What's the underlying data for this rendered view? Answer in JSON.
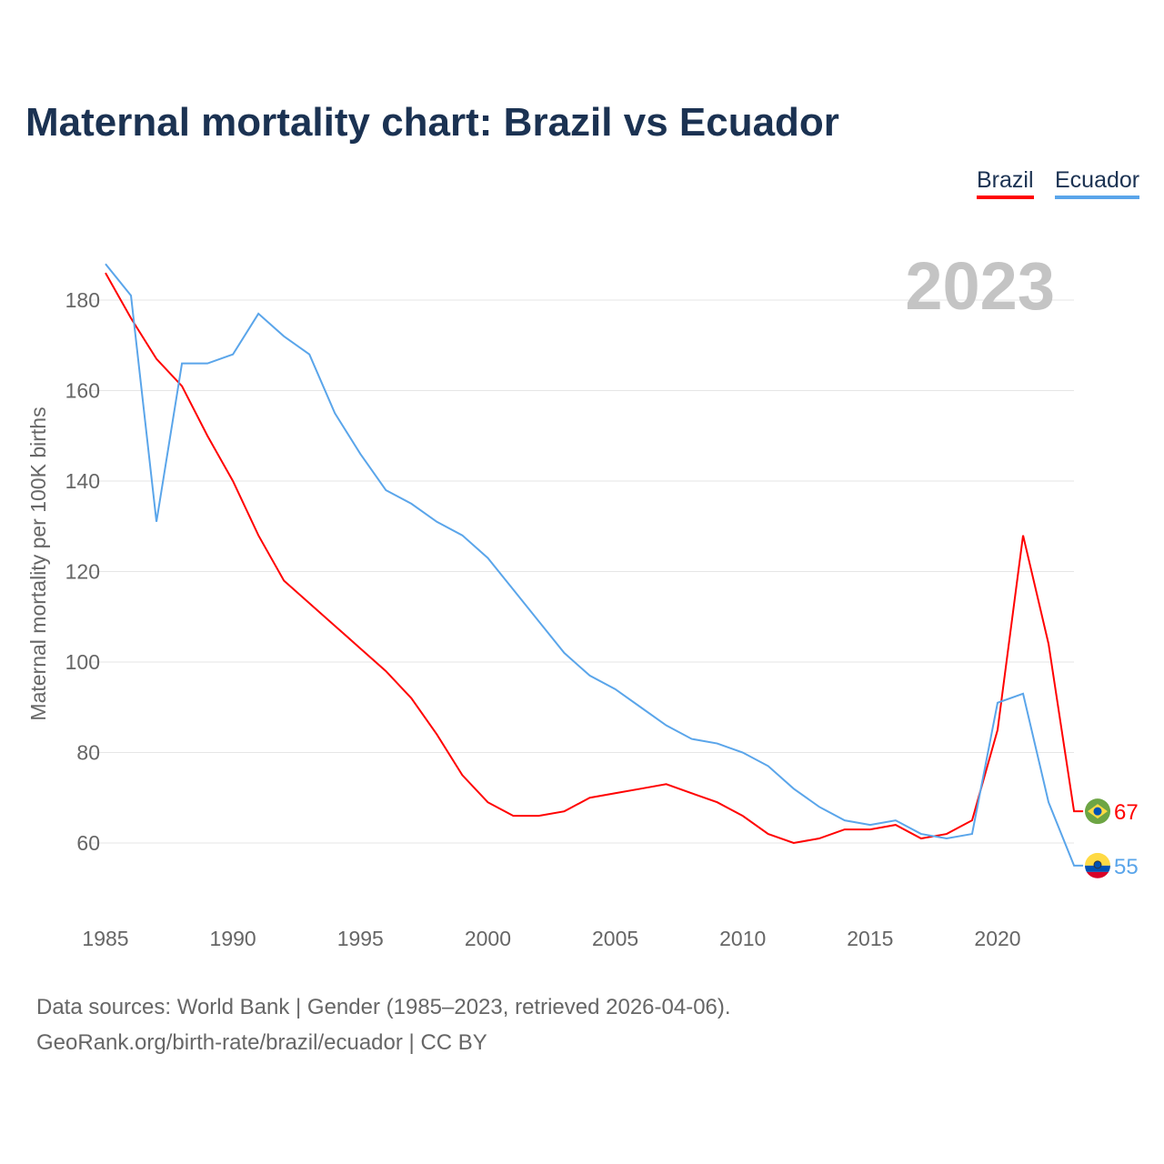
{
  "title": "Maternal mortality chart: Brazil vs Ecuador",
  "footer": {
    "line1": "Data sources: World Bank | Gender (1985–2023, retrieved 2026-04-06).",
    "line2": "GeoRank.org/birth-rate/brazil/ecuador | CC BY"
  },
  "chart_data": {
    "type": "line",
    "title": "Maternal mortality chart: Brazil vs Ecuador",
    "year_label": "2023",
    "xlabel": "",
    "ylabel": "Maternal mortality per 100K births",
    "xlim": [
      1985,
      2023
    ],
    "ylim": [
      50,
      190
    ],
    "xticks": [
      1985,
      1990,
      1995,
      2000,
      2005,
      2010,
      2015,
      2020
    ],
    "yticks": [
      60,
      80,
      100,
      120,
      140,
      160,
      180
    ],
    "grid": true,
    "legend_position": "top-right",
    "x": [
      1985,
      1986,
      1987,
      1988,
      1989,
      1990,
      1991,
      1992,
      1993,
      1994,
      1995,
      1996,
      1997,
      1998,
      1999,
      2000,
      2001,
      2002,
      2003,
      2004,
      2005,
      2006,
      2007,
      2008,
      2009,
      2010,
      2011,
      2012,
      2013,
      2014,
      2015,
      2016,
      2017,
      2018,
      2019,
      2020,
      2021,
      2022,
      2023
    ],
    "series": [
      {
        "name": "Brazil",
        "color": "#ff0000",
        "end_label": "67",
        "flag": "brazil-flag-icon",
        "values": [
          186,
          176,
          167,
          161,
          150,
          140,
          128,
          118,
          113,
          108,
          103,
          98,
          92,
          84,
          75,
          69,
          66,
          66,
          67,
          70,
          71,
          72,
          73,
          71,
          69,
          66,
          62,
          60,
          61,
          63,
          63,
          64,
          61,
          62,
          65,
          85,
          128,
          104,
          67
        ]
      },
      {
        "name": "Ecuador",
        "color": "#5aa5ea",
        "end_label": "55",
        "flag": "ecuador-flag-icon",
        "values": [
          188,
          181,
          131,
          166,
          166,
          168,
          177,
          172,
          168,
          155,
          146,
          138,
          135,
          131,
          128,
          123,
          116,
          109,
          102,
          97,
          94,
          90,
          86,
          83,
          82,
          80,
          77,
          72,
          68,
          65,
          64,
          65,
          62,
          61,
          62,
          91,
          93,
          69,
          55
        ]
      }
    ]
  }
}
